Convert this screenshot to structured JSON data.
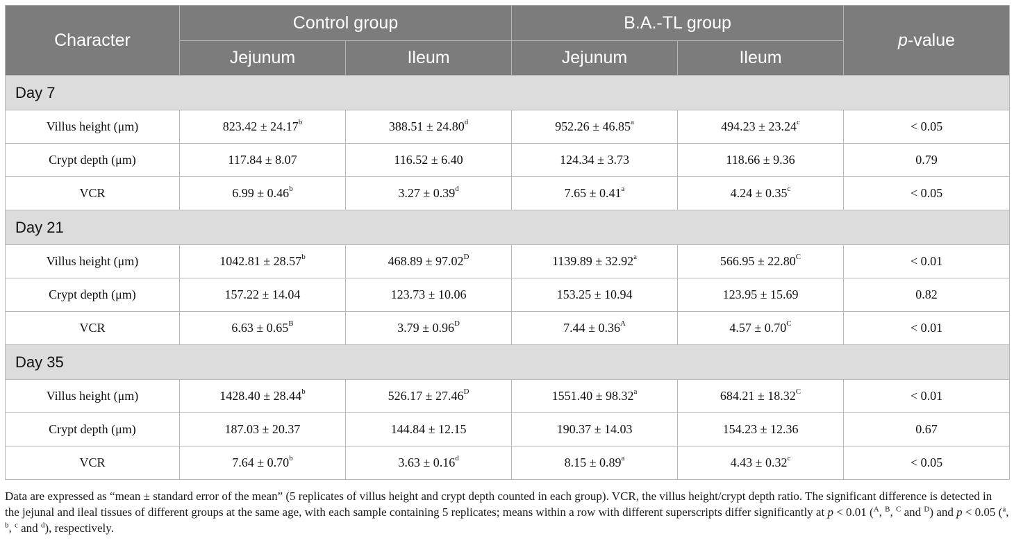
{
  "header": {
    "character": "Character",
    "control_group": "Control group",
    "treatment_group": "B.A.-TL group",
    "p_value_italic": "p",
    "p_value_suffix": "-value",
    "jejunum": "Jejunum",
    "ileum": "Ileum"
  },
  "sections": [
    {
      "label": "Day 7",
      "rows": [
        {
          "name": "Villus height (μm)",
          "cells": [
            {
              "value": "823.42 ± 24.17",
              "sup": "b"
            },
            {
              "value": "388.51 ± 24.80",
              "sup": "d"
            },
            {
              "value": "952.26 ± 46.85",
              "sup": "a"
            },
            {
              "value": "494.23 ± 23.24",
              "sup": "c"
            }
          ],
          "p": "< 0.05"
        },
        {
          "name": "Crypt depth (μm)",
          "cells": [
            {
              "value": "117.84 ± 8.07",
              "sup": ""
            },
            {
              "value": "116.52 ± 6.40",
              "sup": ""
            },
            {
              "value": "124.34 ± 3.73",
              "sup": ""
            },
            {
              "value": "118.66 ± 9.36",
              "sup": ""
            }
          ],
          "p": "0.79"
        },
        {
          "name": "VCR",
          "cells": [
            {
              "value": "6.99 ± 0.46",
              "sup": "b"
            },
            {
              "value": "3.27 ± 0.39",
              "sup": "d"
            },
            {
              "value": "7.65 ± 0.41",
              "sup": "a"
            },
            {
              "value": "4.24 ± 0.35",
              "sup": "c"
            }
          ],
          "p": "< 0.05"
        }
      ]
    },
    {
      "label": "Day 21",
      "rows": [
        {
          "name": "Villus height (μm)",
          "cells": [
            {
              "value": "1042.81 ± 28.57",
              "sup": "b"
            },
            {
              "value": "468.89 ± 97.02",
              "sup": "D"
            },
            {
              "value": "1139.89 ± 32.92",
              "sup": "a"
            },
            {
              "value": "566.95 ± 22.80",
              "sup": "C"
            }
          ],
          "p": "< 0.01"
        },
        {
          "name": "Crypt depth (μm)",
          "cells": [
            {
              "value": "157.22 ± 14.04",
              "sup": ""
            },
            {
              "value": "123.73 ± 10.06",
              "sup": ""
            },
            {
              "value": "153.25 ± 10.94",
              "sup": ""
            },
            {
              "value": "123.95 ± 15.69",
              "sup": ""
            }
          ],
          "p": "0.82"
        },
        {
          "name": "VCR",
          "cells": [
            {
              "value": "6.63 ± 0.65",
              "sup": "B"
            },
            {
              "value": "3.79 ± 0.96",
              "sup": "D"
            },
            {
              "value": "7.44 ± 0.36",
              "sup": "A"
            },
            {
              "value": "4.57 ± 0.70",
              "sup": "C"
            }
          ],
          "p": "< 0.01"
        }
      ]
    },
    {
      "label": "Day 35",
      "rows": [
        {
          "name": "Villus height (μm)",
          "cells": [
            {
              "value": "1428.40 ± 28.44",
              "sup": "b"
            },
            {
              "value": "526.17 ± 27.46",
              "sup": "D"
            },
            {
              "value": "1551.40 ± 98.32",
              "sup": "a"
            },
            {
              "value": "684.21 ± 18.32",
              "sup": "C"
            }
          ],
          "p": "< 0.01"
        },
        {
          "name": "Crypt depth (μm)",
          "cells": [
            {
              "value": "187.03 ± 20.37",
              "sup": ""
            },
            {
              "value": "144.84 ± 12.15",
              "sup": ""
            },
            {
              "value": "190.37 ± 14.03",
              "sup": ""
            },
            {
              "value": "154.23 ± 12.36",
              "sup": ""
            }
          ],
          "p": "0.67"
        },
        {
          "name": "VCR",
          "cells": [
            {
              "value": "7.64 ± 0.70",
              "sup": "b"
            },
            {
              "value": "3.63 ± 0.16",
              "sup": "d"
            },
            {
              "value": "8.15 ± 0.89",
              "sup": "a"
            },
            {
              "value": "4.43 ± 0.32",
              "sup": "c"
            }
          ],
          "p": "< 0.05"
        }
      ]
    }
  ],
  "footnote": {
    "part1": "Data are expressed as “mean ± standard error of the mean” (5 replicates of villus height and crypt depth counted in each group). VCR, the villus height/crypt depth ratio. The significant difference is detected in the jejunal and ileal tissues of different groups at the same age, with each sample containing 5 replicates; means within a row with different superscripts differ significantly at ",
    "p1": "p",
    "part2": " < 0.01 (",
    "supA": "A",
    "sep1": ", ",
    "supB": "B",
    "sep2": ", ",
    "supC": "C",
    "and1": " and ",
    "supD": "D",
    "part3": ") and ",
    "p2": "p",
    "part4": " < 0.05 (",
    "supa": "a",
    "sep3": ", ",
    "supb": "b",
    "sep4": ", ",
    "supc": "c",
    "and2": " and ",
    "supd": "d",
    "part5": "), respectively."
  }
}
